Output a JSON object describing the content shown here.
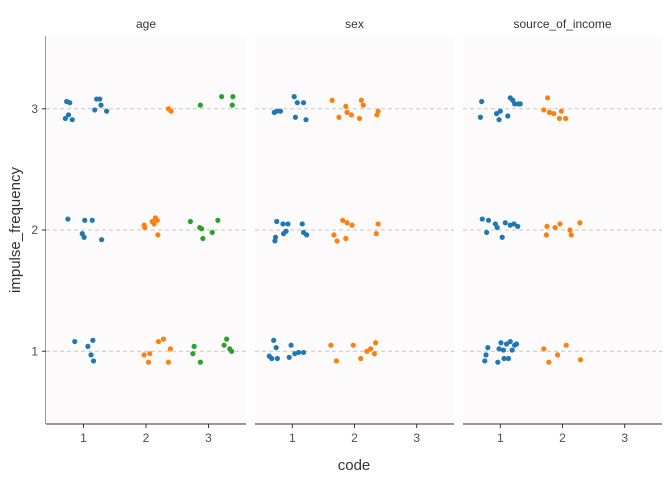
{
  "chart_data": {
    "type": "scatter",
    "subtype": "faceted jitter strip plot",
    "xlabel": "code",
    "ylabel": "impulse_frequency",
    "x_ticks": [
      "1",
      "2",
      "3"
    ],
    "y_ticks": [
      "1",
      "2",
      "3"
    ],
    "xlim": [
      0.4,
      3.6
    ],
    "ylim": [
      0.4,
      3.6
    ],
    "reference_lines_y": [
      1,
      2,
      3
    ],
    "colors": {
      "code_1": "#1f77b4",
      "code_2": "#ff7f0e",
      "code_3": "#2ca02c",
      "panel_bg": "#fcfafa",
      "ref_line": "#c8c8c8"
    },
    "facets": [
      {
        "title": "age",
        "points": [
          {
            "code": 1,
            "x": 0.71,
            "y": 2.92
          },
          {
            "code": 1,
            "x": 0.73,
            "y": 3.06
          },
          {
            "code": 1,
            "x": 0.76,
            "y": 2.95
          },
          {
            "code": 1,
            "x": 0.78,
            "y": 3.05
          },
          {
            "code": 1,
            "x": 0.82,
            "y": 2.91
          },
          {
            "code": 1,
            "x": 1.18,
            "y": 2.99
          },
          {
            "code": 1,
            "x": 1.21,
            "y": 3.08
          },
          {
            "code": 1,
            "x": 1.26,
            "y": 3.08
          },
          {
            "code": 1,
            "x": 1.28,
            "y": 3.03
          },
          {
            "code": 1,
            "x": 1.37,
            "y": 2.98
          },
          {
            "code": 1,
            "x": 0.75,
            "y": 2.09
          },
          {
            "code": 1,
            "x": 0.98,
            "y": 1.97
          },
          {
            "code": 1,
            "x": 1.01,
            "y": 1.94
          },
          {
            "code": 1,
            "x": 1.02,
            "y": 2.08
          },
          {
            "code": 1,
            "x": 1.14,
            "y": 2.08
          },
          {
            "code": 1,
            "x": 1.29,
            "y": 1.92
          },
          {
            "code": 1,
            "x": 0.86,
            "y": 1.08
          },
          {
            "code": 1,
            "x": 1.07,
            "y": 1.04
          },
          {
            "code": 1,
            "x": 1.12,
            "y": 0.97
          },
          {
            "code": 1,
            "x": 1.15,
            "y": 1.09
          },
          {
            "code": 1,
            "x": 1.16,
            "y": 0.92
          },
          {
            "code": 2,
            "x": 2.36,
            "y": 3.0
          },
          {
            "code": 2,
            "x": 2.4,
            "y": 2.98
          },
          {
            "code": 2,
            "x": 1.97,
            "y": 2.04
          },
          {
            "code": 2,
            "x": 1.98,
            "y": 2.02
          },
          {
            "code": 2,
            "x": 2.1,
            "y": 2.07
          },
          {
            "code": 2,
            "x": 2.13,
            "y": 2.05
          },
          {
            "code": 2,
            "x": 2.15,
            "y": 2.1
          },
          {
            "code": 2,
            "x": 2.18,
            "y": 2.08
          },
          {
            "code": 2,
            "x": 2.19,
            "y": 1.96
          },
          {
            "code": 2,
            "x": 1.97,
            "y": 0.97
          },
          {
            "code": 2,
            "x": 2.04,
            "y": 0.91
          },
          {
            "code": 2,
            "x": 2.06,
            "y": 0.98
          },
          {
            "code": 2,
            "x": 2.2,
            "y": 1.08
          },
          {
            "code": 2,
            "x": 2.28,
            "y": 1.1
          },
          {
            "code": 2,
            "x": 2.36,
            "y": 0.91
          },
          {
            "code": 2,
            "x": 2.39,
            "y": 1.02
          },
          {
            "code": 3,
            "x": 2.87,
            "y": 3.03
          },
          {
            "code": 3,
            "x": 3.21,
            "y": 3.1
          },
          {
            "code": 3,
            "x": 3.38,
            "y": 3.03
          },
          {
            "code": 3,
            "x": 3.39,
            "y": 3.1
          },
          {
            "code": 3,
            "x": 2.71,
            "y": 2.07
          },
          {
            "code": 3,
            "x": 2.86,
            "y": 2.02
          },
          {
            "code": 3,
            "x": 2.89,
            "y": 2.01
          },
          {
            "code": 3,
            "x": 2.91,
            "y": 1.93
          },
          {
            "code": 3,
            "x": 3.06,
            "y": 1.98
          },
          {
            "code": 3,
            "x": 3.15,
            "y": 2.08
          },
          {
            "code": 3,
            "x": 2.75,
            "y": 0.98
          },
          {
            "code": 3,
            "x": 2.77,
            "y": 1.04
          },
          {
            "code": 3,
            "x": 2.87,
            "y": 0.91
          },
          {
            "code": 3,
            "x": 3.25,
            "y": 1.05
          },
          {
            "code": 3,
            "x": 3.29,
            "y": 1.1
          },
          {
            "code": 3,
            "x": 3.34,
            "y": 1.02
          },
          {
            "code": 3,
            "x": 3.37,
            "y": 1.0
          }
        ]
      },
      {
        "title": "sex",
        "points": [
          {
            "code": 1,
            "x": 0.71,
            "y": 2.97
          },
          {
            "code": 1,
            "x": 0.75,
            "y": 2.98
          },
          {
            "code": 1,
            "x": 0.81,
            "y": 2.98
          },
          {
            "code": 1,
            "x": 1.03,
            "y": 3.1
          },
          {
            "code": 1,
            "x": 1.05,
            "y": 2.93
          },
          {
            "code": 1,
            "x": 1.08,
            "y": 3.05
          },
          {
            "code": 1,
            "x": 1.18,
            "y": 3.05
          },
          {
            "code": 1,
            "x": 1.22,
            "y": 2.91
          },
          {
            "code": 1,
            "x": 0.72,
            "y": 1.91
          },
          {
            "code": 1,
            "x": 0.73,
            "y": 1.94
          },
          {
            "code": 1,
            "x": 0.75,
            "y": 2.07
          },
          {
            "code": 1,
            "x": 0.85,
            "y": 2.05
          },
          {
            "code": 1,
            "x": 0.86,
            "y": 1.97
          },
          {
            "code": 1,
            "x": 0.9,
            "y": 1.99
          },
          {
            "code": 1,
            "x": 0.93,
            "y": 2.05
          },
          {
            "code": 1,
            "x": 1.16,
            "y": 2.05
          },
          {
            "code": 1,
            "x": 1.18,
            "y": 1.98
          },
          {
            "code": 1,
            "x": 1.23,
            "y": 1.96
          },
          {
            "code": 1,
            "x": 0.63,
            "y": 0.96
          },
          {
            "code": 1,
            "x": 0.67,
            "y": 0.94
          },
          {
            "code": 1,
            "x": 0.7,
            "y": 1.09
          },
          {
            "code": 1,
            "x": 0.74,
            "y": 1.03
          },
          {
            "code": 1,
            "x": 0.76,
            "y": 0.94
          },
          {
            "code": 1,
            "x": 0.95,
            "y": 0.95
          },
          {
            "code": 1,
            "x": 0.98,
            "y": 1.05
          },
          {
            "code": 1,
            "x": 1.04,
            "y": 0.98
          },
          {
            "code": 1,
            "x": 1.1,
            "y": 0.99
          },
          {
            "code": 1,
            "x": 1.18,
            "y": 0.99
          },
          {
            "code": 2,
            "x": 1.64,
            "y": 3.07
          },
          {
            "code": 2,
            "x": 1.75,
            "y": 2.93
          },
          {
            "code": 2,
            "x": 1.86,
            "y": 3.02
          },
          {
            "code": 2,
            "x": 1.88,
            "y": 2.97
          },
          {
            "code": 2,
            "x": 1.95,
            "y": 2.95
          },
          {
            "code": 2,
            "x": 2.08,
            "y": 2.92
          },
          {
            "code": 2,
            "x": 2.11,
            "y": 3.07
          },
          {
            "code": 2,
            "x": 2.14,
            "y": 3.03
          },
          {
            "code": 2,
            "x": 2.36,
            "y": 2.95
          },
          {
            "code": 2,
            "x": 2.38,
            "y": 2.98
          },
          {
            "code": 2,
            "x": 1.67,
            "y": 1.96
          },
          {
            "code": 2,
            "x": 1.72,
            "y": 1.91
          },
          {
            "code": 2,
            "x": 1.81,
            "y": 2.08
          },
          {
            "code": 2,
            "x": 1.86,
            "y": 1.93
          },
          {
            "code": 2,
            "x": 1.88,
            "y": 2.06
          },
          {
            "code": 2,
            "x": 1.96,
            "y": 2.04
          },
          {
            "code": 2,
            "x": 2.35,
            "y": 1.97
          },
          {
            "code": 2,
            "x": 2.38,
            "y": 2.05
          },
          {
            "code": 2,
            "x": 1.62,
            "y": 1.05
          },
          {
            "code": 2,
            "x": 1.71,
            "y": 0.92
          },
          {
            "code": 2,
            "x": 1.98,
            "y": 1.05
          },
          {
            "code": 2,
            "x": 2.1,
            "y": 0.94
          },
          {
            "code": 2,
            "x": 2.2,
            "y": 1.0
          },
          {
            "code": 2,
            "x": 2.26,
            "y": 1.02
          },
          {
            "code": 2,
            "x": 2.32,
            "y": 0.98
          },
          {
            "code": 2,
            "x": 2.34,
            "y": 1.07
          }
        ]
      },
      {
        "title": "source_of_income",
        "points": [
          {
            "code": 1,
            "x": 0.68,
            "y": 2.93
          },
          {
            "code": 1,
            "x": 0.7,
            "y": 3.06
          },
          {
            "code": 1,
            "x": 0.94,
            "y": 2.96
          },
          {
            "code": 1,
            "x": 0.98,
            "y": 2.91
          },
          {
            "code": 1,
            "x": 1.0,
            "y": 2.98
          },
          {
            "code": 1,
            "x": 1.12,
            "y": 2.94
          },
          {
            "code": 1,
            "x": 1.16,
            "y": 3.09
          },
          {
            "code": 1,
            "x": 1.2,
            "y": 3.07
          },
          {
            "code": 1,
            "x": 1.23,
            "y": 3.04
          },
          {
            "code": 1,
            "x": 1.29,
            "y": 3.04
          },
          {
            "code": 1,
            "x": 1.32,
            "y": 3.04
          },
          {
            "code": 1,
            "x": 0.71,
            "y": 2.09
          },
          {
            "code": 1,
            "x": 0.78,
            "y": 1.98
          },
          {
            "code": 1,
            "x": 0.81,
            "y": 2.08
          },
          {
            "code": 1,
            "x": 0.92,
            "y": 2.05
          },
          {
            "code": 1,
            "x": 0.95,
            "y": 2.02
          },
          {
            "code": 1,
            "x": 1.03,
            "y": 1.94
          },
          {
            "code": 1,
            "x": 1.08,
            "y": 2.06
          },
          {
            "code": 1,
            "x": 1.16,
            "y": 2.04
          },
          {
            "code": 1,
            "x": 1.22,
            "y": 2.05
          },
          {
            "code": 1,
            "x": 1.28,
            "y": 2.03
          },
          {
            "code": 1,
            "x": 0.75,
            "y": 0.92
          },
          {
            "code": 1,
            "x": 0.77,
            "y": 0.97
          },
          {
            "code": 1,
            "x": 0.8,
            "y": 1.03
          },
          {
            "code": 1,
            "x": 0.96,
            "y": 0.91
          },
          {
            "code": 1,
            "x": 0.98,
            "y": 1.02
          },
          {
            "code": 1,
            "x": 1.01,
            "y": 1.07
          },
          {
            "code": 1,
            "x": 1.05,
            "y": 1.01
          },
          {
            "code": 1,
            "x": 1.06,
            "y": 0.94
          },
          {
            "code": 1,
            "x": 1.1,
            "y": 1.06
          },
          {
            "code": 1,
            "x": 1.13,
            "y": 0.94
          },
          {
            "code": 1,
            "x": 1.16,
            "y": 1.08
          },
          {
            "code": 1,
            "x": 1.19,
            "y": 1.01
          },
          {
            "code": 1,
            "x": 1.23,
            "y": 1.05
          },
          {
            "code": 1,
            "x": 1.26,
            "y": 1.06
          },
          {
            "code": 2,
            "x": 1.7,
            "y": 2.99
          },
          {
            "code": 2,
            "x": 1.76,
            "y": 3.09
          },
          {
            "code": 2,
            "x": 1.79,
            "y": 2.97
          },
          {
            "code": 2,
            "x": 1.86,
            "y": 2.96
          },
          {
            "code": 2,
            "x": 1.95,
            "y": 2.92
          },
          {
            "code": 2,
            "x": 1.98,
            "y": 2.98
          },
          {
            "code": 2,
            "x": 2.05,
            "y": 2.92
          },
          {
            "code": 2,
            "x": 1.74,
            "y": 1.96
          },
          {
            "code": 2,
            "x": 1.75,
            "y": 2.03
          },
          {
            "code": 2,
            "x": 1.88,
            "y": 2.02
          },
          {
            "code": 2,
            "x": 1.96,
            "y": 2.05
          },
          {
            "code": 2,
            "x": 2.12,
            "y": 2.0
          },
          {
            "code": 2,
            "x": 2.14,
            "y": 1.96
          },
          {
            "code": 2,
            "x": 2.28,
            "y": 2.06
          },
          {
            "code": 2,
            "x": 1.7,
            "y": 1.02
          },
          {
            "code": 2,
            "x": 1.78,
            "y": 0.91
          },
          {
            "code": 2,
            "x": 1.92,
            "y": 0.97
          },
          {
            "code": 2,
            "x": 2.06,
            "y": 1.05
          },
          {
            "code": 2,
            "x": 2.29,
            "y": 0.93
          }
        ]
      }
    ]
  }
}
